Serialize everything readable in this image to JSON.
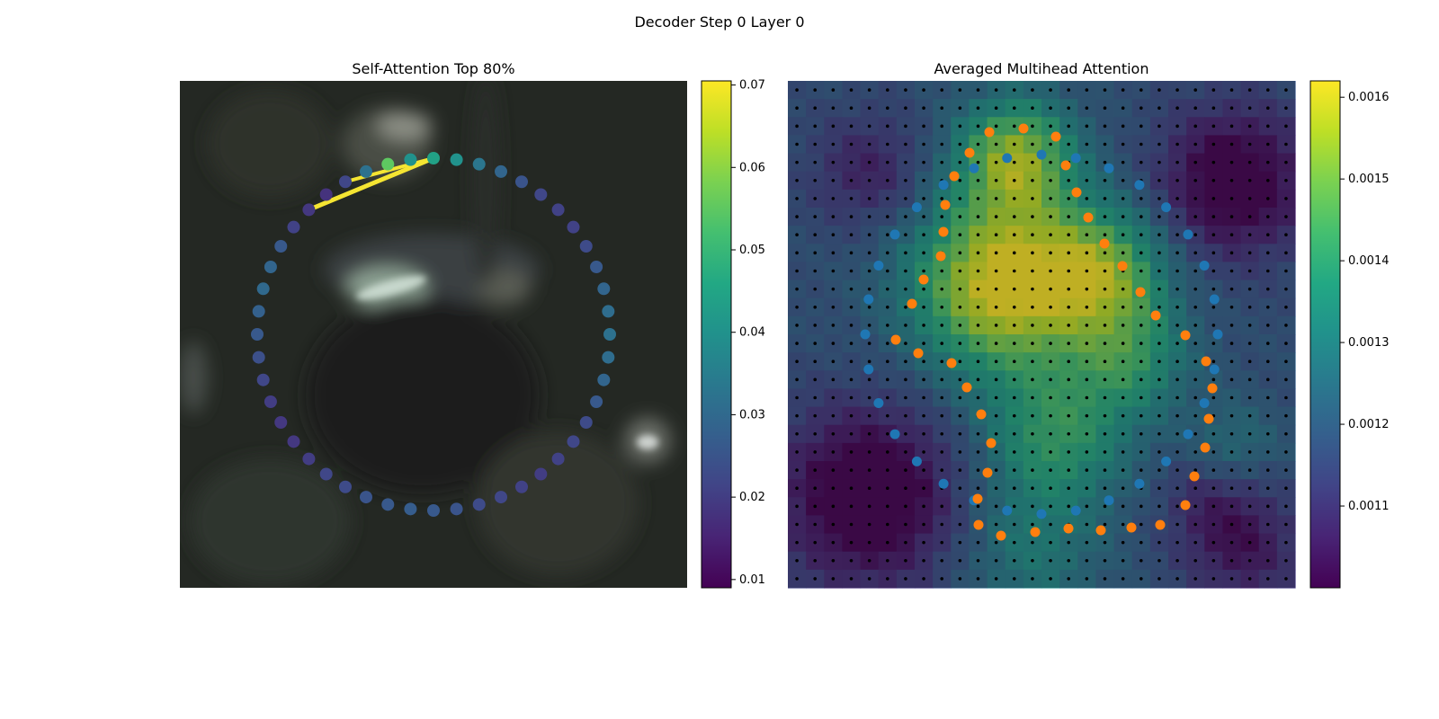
{
  "figure": {
    "title": "Decoder Step 0 Layer 0"
  },
  "chart_data": [
    {
      "type": "scatter",
      "title": "Self-Attention Top 80%",
      "xlabel": "",
      "ylabel": "",
      "axes_visible": false,
      "background": "blurred dark video frame",
      "grid": false,
      "colormap": "viridis",
      "colorbar": {
        "range": [
          0.009,
          0.0705
        ],
        "ticks": [
          0.01,
          0.02,
          0.03,
          0.04,
          0.05,
          0.06,
          0.07
        ],
        "tick_labels": [
          "0.01",
          "0.02",
          "0.03",
          "0.04",
          "0.05",
          "0.06",
          "0.07"
        ]
      },
      "series": [
        {
          "marker": "circle",
          "description_values": "attention weight per polygon vertex, 48 vertices arranged on a circle starting at top and going clockwise",
          "values": [
            0.044,
            0.04,
            0.033,
            0.029,
            0.025,
            0.022,
            0.021,
            0.021,
            0.023,
            0.026,
            0.029,
            0.031,
            0.032,
            0.031,
            0.029,
            0.026,
            0.023,
            0.022,
            0.021,
            0.02,
            0.021,
            0.022,
            0.023,
            0.025,
            0.026,
            0.027,
            0.026,
            0.025,
            0.023,
            0.022,
            0.02,
            0.019,
            0.019,
            0.02,
            0.022,
            0.024,
            0.026,
            0.028,
            0.03,
            0.029,
            0.026,
            0.021,
            0.019,
            0.018,
            0.022,
            0.032,
            0.055,
            0.04
          ]
        }
      ],
      "connections": {
        "color": "#f5e532",
        "description_values": "top attention links from the top vertex",
        "values": [
          0.0705,
          0.066
        ]
      }
    },
    {
      "type": "heatmap",
      "title": "Averaged Multihead Attention",
      "xlabel": "",
      "ylabel": "",
      "axes_visible": false,
      "grid": false,
      "colormap": "viridis",
      "grid_size": [
        28,
        28
      ],
      "colorbar": {
        "range": [
          0.001,
          0.00162
        ],
        "ticks": [
          0.0011,
          0.0012,
          0.0013,
          0.0014,
          0.0015,
          0.0016
        ],
        "tick_labels": [
          "0.0011",
          "0.0012",
          "0.0013",
          "0.0014",
          "0.0015",
          "0.0016"
        ]
      },
      "reference_points": {
        "color": "#000000",
        "marker": "dot"
      },
      "series": [
        {
          "color": "#1f77b4",
          "marker": "circle",
          "name": ""
        },
        {
          "color": "#ff7f0e",
          "marker": "circle",
          "name": ""
        }
      ]
    }
  ]
}
